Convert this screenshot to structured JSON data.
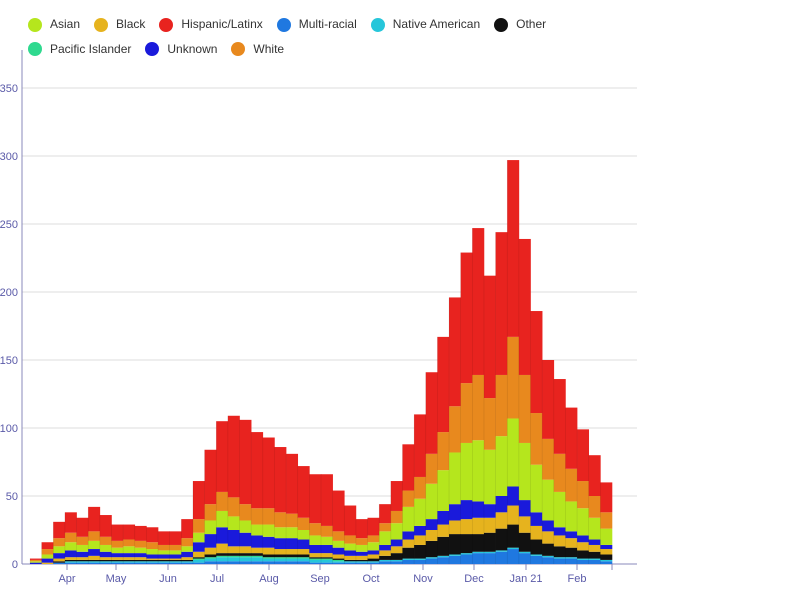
{
  "chart_data": {
    "type": "bar",
    "stacked": true,
    "title": "",
    "xlabel": "",
    "ylabel": "",
    "ylim": [
      0,
      375
    ],
    "yticks": [
      0,
      50,
      100,
      150,
      200,
      250,
      300,
      350
    ],
    "grid": true,
    "legend_position": "top-left",
    "x_tick_labels": [
      "Apr",
      "May",
      "Jun",
      "Jul",
      "Aug",
      "Sep",
      "Oct",
      "Nov",
      "Dec",
      "Jan 21",
      "Feb"
    ],
    "x_period": "daily, approx. mid-March 2020 to late February 2021 (sampled weekly here)",
    "stack_order": [
      "Multi-racial",
      "Native American",
      "Pacific Islander",
      "Other",
      "Black",
      "Unknown",
      "Asian",
      "White",
      "Hispanic/Latinx"
    ],
    "series": [
      {
        "name": "Asian",
        "color": "#b5e61d",
        "values": [
          1,
          3,
          5,
          6,
          5,
          6,
          5,
          4,
          5,
          4,
          4,
          3,
          3,
          4,
          7,
          10,
          12,
          10,
          9,
          8,
          9,
          8,
          8,
          7,
          7,
          6,
          5,
          5,
          5,
          6,
          10,
          12,
          18,
          20,
          26,
          30,
          38,
          42,
          45,
          40,
          44,
          50,
          42,
          35,
          30,
          26,
          22,
          20,
          16,
          12
        ]
      },
      {
        "name": "Black",
        "color": "#e6b31e",
        "values": [
          0,
          1,
          2,
          2,
          2,
          3,
          2,
          2,
          2,
          2,
          1,
          1,
          1,
          2,
          4,
          5,
          7,
          5,
          5,
          4,
          5,
          4,
          4,
          4,
          3,
          3,
          3,
          3,
          3,
          3,
          4,
          5,
          6,
          7,
          8,
          9,
          10,
          11,
          12,
          11,
          12,
          14,
          12,
          10,
          9,
          8,
          7,
          6,
          5,
          4
        ]
      },
      {
        "name": "Hispanic/Latinx",
        "color": "#e8231f",
        "values": [
          1,
          5,
          12,
          15,
          14,
          18,
          16,
          12,
          11,
          11,
          11,
          10,
          10,
          14,
          28,
          40,
          52,
          60,
          62,
          56,
          52,
          48,
          44,
          38,
          36,
          38,
          30,
          22,
          14,
          13,
          14,
          22,
          34,
          46,
          60,
          70,
          80,
          96,
          108,
          90,
          105,
          130,
          100,
          75,
          58,
          55,
          45,
          38,
          30,
          22
        ]
      },
      {
        "name": "Multi-racial",
        "color": "#1f78e0",
        "values": [
          0,
          0,
          1,
          1,
          1,
          1,
          1,
          1,
          1,
          1,
          1,
          1,
          1,
          1,
          1,
          2,
          2,
          2,
          2,
          2,
          2,
          2,
          2,
          2,
          1,
          1,
          1,
          1,
          1,
          1,
          2,
          2,
          3,
          3,
          4,
          5,
          6,
          7,
          8,
          8,
          9,
          11,
          8,
          6,
          5,
          4,
          4,
          3,
          3,
          2
        ]
      },
      {
        "name": "Native American",
        "color": "#26c6da",
        "values": [
          0,
          0,
          0,
          1,
          1,
          1,
          1,
          1,
          1,
          1,
          1,
          1,
          1,
          1,
          2,
          2,
          3,
          3,
          3,
          3,
          2,
          2,
          2,
          2,
          2,
          2,
          1,
          1,
          1,
          1,
          1,
          1,
          1,
          1,
          1,
          1,
          1,
          1,
          1,
          1,
          1,
          1,
          1,
          1,
          1,
          1,
          1,
          1,
          1,
          1
        ]
      },
      {
        "name": "Other",
        "color": "#111111",
        "values": [
          0,
          0,
          1,
          1,
          1,
          1,
          1,
          1,
          1,
          1,
          1,
          1,
          1,
          1,
          1,
          2,
          2,
          2,
          2,
          2,
          2,
          2,
          2,
          2,
          1,
          1,
          1,
          1,
          1,
          2,
          3,
          5,
          8,
          10,
          12,
          14,
          15,
          14,
          13,
          14,
          16,
          17,
          14,
          11,
          9,
          8,
          7,
          6,
          5,
          4
        ]
      },
      {
        "name": "Pacific Islander",
        "color": "#2fd98f",
        "values": [
          0,
          0,
          0,
          0,
          0,
          0,
          0,
          0,
          0,
          0,
          0,
          0,
          0,
          0,
          1,
          1,
          1,
          1,
          1,
          1,
          1,
          1,
          1,
          1,
          1,
          1,
          1,
          0,
          0,
          0,
          0,
          0,
          0,
          0,
          0,
          0,
          0,
          0,
          0,
          0,
          0,
          0,
          0,
          0,
          0,
          0,
          0,
          0,
          0,
          0
        ]
      },
      {
        "name": "Unknown",
        "color": "#1a1adb",
        "values": [
          1,
          3,
          4,
          5,
          4,
          5,
          4,
          3,
          3,
          3,
          3,
          3,
          3,
          4,
          7,
          10,
          12,
          12,
          10,
          9,
          8,
          8,
          8,
          7,
          6,
          6,
          5,
          4,
          3,
          3,
          4,
          5,
          6,
          7,
          8,
          10,
          12,
          14,
          12,
          10,
          12,
          14,
          12,
          10,
          8,
          6,
          5,
          5,
          4,
          3
        ]
      },
      {
        "name": "White",
        "color": "#e8891e",
        "values": [
          1,
          4,
          6,
          7,
          6,
          7,
          6,
          5,
          5,
          5,
          5,
          4,
          4,
          6,
          10,
          12,
          14,
          14,
          12,
          12,
          12,
          11,
          10,
          9,
          9,
          8,
          7,
          6,
          5,
          5,
          6,
          9,
          12,
          16,
          22,
          28,
          34,
          44,
          48,
          38,
          45,
          60,
          50,
          38,
          30,
          28,
          24,
          20,
          16,
          12
        ]
      }
    ]
  },
  "legend": {
    "items": [
      {
        "label": "Asian",
        "color": "#b5e61d"
      },
      {
        "label": "Black",
        "color": "#e6b31e"
      },
      {
        "label": "Hispanic/Latinx",
        "color": "#e8231f"
      },
      {
        "label": "Multi-racial",
        "color": "#1f78e0"
      },
      {
        "label": "Native American",
        "color": "#26c6da"
      },
      {
        "label": "Other",
        "color": "#111111"
      },
      {
        "label": "Pacific Islander",
        "color": "#2fd98f"
      },
      {
        "label": "Unknown",
        "color": "#1a1adb"
      },
      {
        "label": "White",
        "color": "#e8891e"
      }
    ]
  }
}
